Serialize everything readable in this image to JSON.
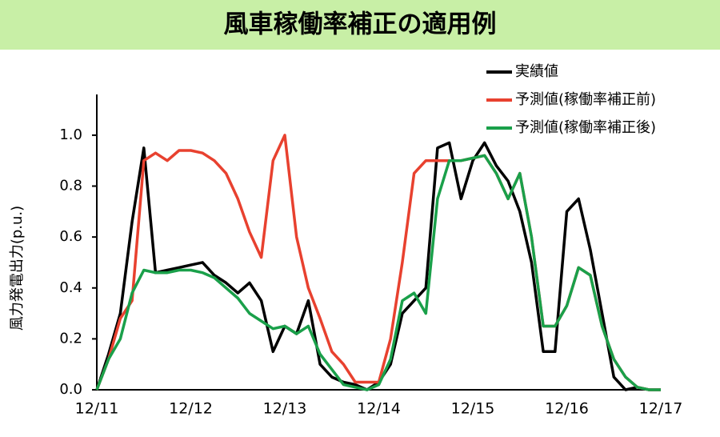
{
  "chart_data": {
    "type": "line",
    "title": "風車稼働率補正の適用例",
    "y_label": "風力発電出力(p.u.)",
    "categories": [
      "12/11",
      null,
      null,
      null,
      null,
      null,
      null,
      null,
      "12/12",
      null,
      null,
      null,
      null,
      null,
      null,
      null,
      "12/13",
      null,
      null,
      null,
      null,
      null,
      null,
      null,
      "12/14",
      null,
      null,
      null,
      null,
      null,
      null,
      null,
      "12/15",
      null,
      null,
      null,
      null,
      null,
      null,
      null,
      "12/16",
      null,
      null,
      null,
      null,
      null,
      null,
      null,
      "12/17"
    ],
    "series": [
      {
        "name": "実績値",
        "color": "#000000",
        "values": [
          0.0,
          0.14,
          0.3,
          0.66,
          0.95,
          0.46,
          0.47,
          0.48,
          0.49,
          0.5,
          0.45,
          0.42,
          0.38,
          0.42,
          0.35,
          0.15,
          0.25,
          0.22,
          0.35,
          0.1,
          0.05,
          0.03,
          0.02,
          0.0,
          0.03,
          0.1,
          0.3,
          0.35,
          0.4,
          0.95,
          0.97,
          0.75,
          0.9,
          0.97,
          0.88,
          0.82,
          0.7,
          0.5,
          0.15,
          0.15,
          0.7,
          0.75,
          0.55,
          0.3,
          0.05,
          0.0,
          0.01,
          0.0,
          0.0
        ]
      },
      {
        "name": "予測値(稼働率補正前)",
        "color": "#e8412f",
        "values": [
          0.0,
          0.12,
          0.28,
          0.35,
          0.9,
          0.93,
          0.9,
          0.94,
          0.94,
          0.93,
          0.9,
          0.85,
          0.75,
          0.62,
          0.52,
          0.9,
          1.0,
          0.6,
          0.4,
          0.28,
          0.15,
          0.1,
          0.03,
          0.03,
          0.03,
          0.2,
          0.5,
          0.85,
          0.9,
          0.9,
          0.9,
          0.9,
          0.91,
          0.92,
          0.85,
          0.75,
          0.85,
          0.6,
          0.25,
          0.25,
          0.33,
          0.48,
          0.45,
          0.25,
          0.12,
          0.05,
          0.01,
          0.0,
          0.0
        ]
      },
      {
        "name": "予測値(稼働率補正後)",
        "color": "#1aa04a",
        "values": [
          0.0,
          0.12,
          0.2,
          0.38,
          0.47,
          0.46,
          0.46,
          0.47,
          0.47,
          0.46,
          0.44,
          0.4,
          0.36,
          0.3,
          0.27,
          0.24,
          0.25,
          0.22,
          0.25,
          0.14,
          0.08,
          0.02,
          0.01,
          0.0,
          0.02,
          0.12,
          0.35,
          0.38,
          0.3,
          0.75,
          0.9,
          0.9,
          0.91,
          0.92,
          0.85,
          0.75,
          0.85,
          0.6,
          0.25,
          0.25,
          0.33,
          0.48,
          0.45,
          0.25,
          0.12,
          0.05,
          0.01,
          0.0,
          0.0
        ]
      }
    ],
    "ylim": [
      0,
      1.16
    ],
    "yticks": [
      {
        "value": 0,
        "label": "0.0"
      },
      0.2,
      0.4,
      0.6,
      0.8,
      {
        "value": 1,
        "label": "1.0"
      }
    ],
    "legend": "top-right"
  }
}
